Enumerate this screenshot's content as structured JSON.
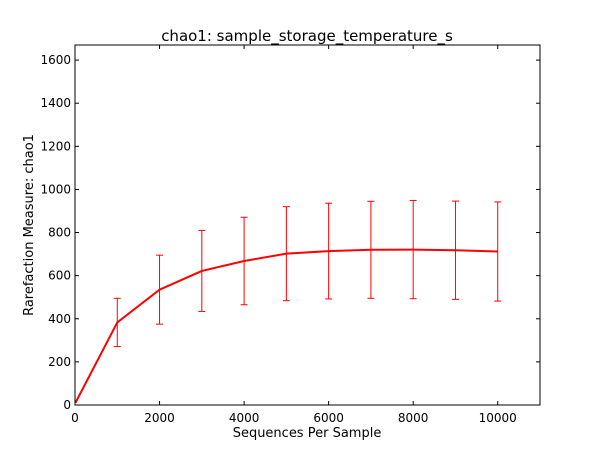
{
  "chart_data": {
    "type": "line",
    "title": "chao1: sample_storage_temperature_s",
    "xlabel": "Sequences Per Sample",
    "ylabel": "Rarefaction Measure: chao1",
    "xlim": [
      0,
      11000
    ],
    "ylim": [
      0,
      1670
    ],
    "xticks": [
      0,
      2000,
      4000,
      6000,
      8000,
      10000
    ],
    "yticks": [
      0,
      200,
      400,
      600,
      800,
      1000,
      1200,
      1400,
      1600
    ],
    "grid": false,
    "legend": "none",
    "series": [
      {
        "color": "#ff0000",
        "points": [
          {
            "x": 10,
            "y": 10,
            "err": 0
          },
          {
            "x": 1000,
            "y": 383,
            "err": 112
          },
          {
            "x": 2000,
            "y": 535,
            "err": 160
          },
          {
            "x": 3000,
            "y": 622,
            "err": 188
          },
          {
            "x": 4000,
            "y": 668,
            "err": 203
          },
          {
            "x": 5000,
            "y": 702,
            "err": 218
          },
          {
            "x": 6000,
            "y": 714,
            "err": 222
          },
          {
            "x": 7000,
            "y": 720,
            "err": 225
          },
          {
            "x": 8000,
            "y": 721,
            "err": 228
          },
          {
            "x": 9000,
            "y": 718,
            "err": 228
          },
          {
            "x": 10000,
            "y": 712,
            "err": 230
          }
        ]
      }
    ]
  }
}
